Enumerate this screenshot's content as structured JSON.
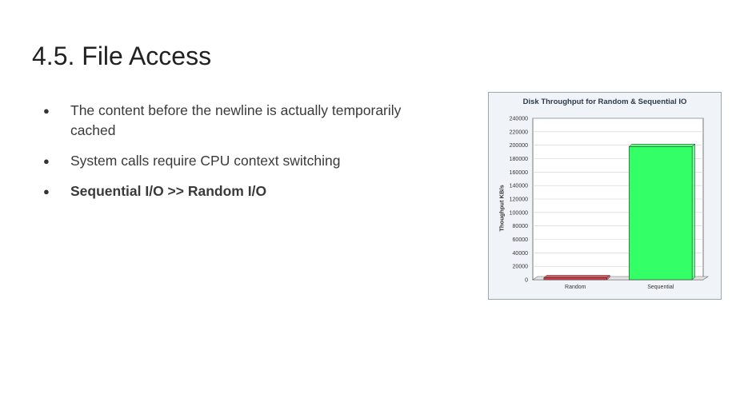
{
  "slide": {
    "title": "4.5. File Access",
    "bullets": [
      {
        "text": "The content before the newline is actually temporarily cached",
        "bold": false
      },
      {
        "text": "System calls require CPU context switching",
        "bold": false
      },
      {
        "text": "Sequential I/O >> Random I/O",
        "bold": true
      }
    ],
    "bullet_glyph": "●"
  },
  "chart_data": {
    "type": "bar",
    "title": "Disk Throughput for Random & Sequential IO",
    "ylabel": "Thoughput KB/s",
    "xlabel": "",
    "categories": [
      "Random",
      "Sequential"
    ],
    "values": [
      3000,
      198000
    ],
    "ylim": [
      0,
      240000
    ],
    "yticks": [
      "0",
      "20000",
      "40000",
      "60000",
      "80000",
      "100000",
      "120000",
      "140000",
      "160000",
      "180000",
      "200000",
      "220000",
      "240000"
    ],
    "colors": [
      "#d9404a",
      "#33ff66"
    ],
    "grid": true,
    "legend": "none"
  }
}
